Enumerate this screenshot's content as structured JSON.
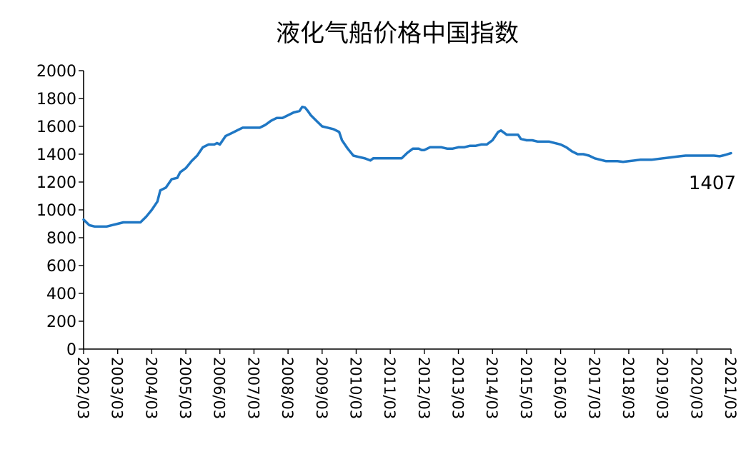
{
  "chart_data": {
    "type": "line",
    "title": "液化气船价格中国指数",
    "xlabel": "",
    "ylabel": "",
    "ylim": [
      0,
      2000
    ],
    "yticks": [
      0,
      200,
      400,
      600,
      800,
      1000,
      1200,
      1400,
      1600,
      1800,
      2000
    ],
    "xticks": [
      "2002/03",
      "2003/03",
      "2004/03",
      "2005/03",
      "2006/03",
      "2007/03",
      "2008/03",
      "2009/03",
      "2010/03",
      "2011/03",
      "2012/03",
      "2013/03",
      "2014/03",
      "2015/03",
      "2016/03",
      "2017/03",
      "2018/03",
      "2019/03",
      "2020/03",
      "2021/03"
    ],
    "grid": false,
    "legend": "none",
    "line_color": "#1f77c4",
    "series": [
      {
        "points": [
          [
            "2002/03",
            930
          ],
          [
            "2002/05",
            890
          ],
          [
            "2002/07",
            880
          ],
          [
            "2002/09",
            880
          ],
          [
            "2002/11",
            880
          ],
          [
            "2003/01",
            890
          ],
          [
            "2003/03",
            900
          ],
          [
            "2003/05",
            910
          ],
          [
            "2003/07",
            910
          ],
          [
            "2003/09",
            910
          ],
          [
            "2003/11",
            910
          ],
          [
            "2004/01",
            950
          ],
          [
            "2004/03",
            1000
          ],
          [
            "2004/05",
            1060
          ],
          [
            "2004/06",
            1140
          ],
          [
            "2004/08",
            1160
          ],
          [
            "2004/10",
            1220
          ],
          [
            "2004/12",
            1230
          ],
          [
            "2005/01",
            1270
          ],
          [
            "2005/03",
            1300
          ],
          [
            "2005/05",
            1350
          ],
          [
            "2005/07",
            1390
          ],
          [
            "2005/09",
            1450
          ],
          [
            "2005/11",
            1470
          ],
          [
            "2006/01",
            1470
          ],
          [
            "2006/02",
            1480
          ],
          [
            "2006/03",
            1470
          ],
          [
            "2006/05",
            1530
          ],
          [
            "2006/07",
            1550
          ],
          [
            "2006/09",
            1570
          ],
          [
            "2006/11",
            1590
          ],
          [
            "2007/01",
            1590
          ],
          [
            "2007/03",
            1590
          ],
          [
            "2007/05",
            1590
          ],
          [
            "2007/07",
            1610
          ],
          [
            "2007/09",
            1640
          ],
          [
            "2007/11",
            1660
          ],
          [
            "2008/01",
            1660
          ],
          [
            "2008/03",
            1680
          ],
          [
            "2008/05",
            1700
          ],
          [
            "2008/07",
            1710
          ],
          [
            "2008/08",
            1740
          ],
          [
            "2008/09",
            1735
          ],
          [
            "2008/10",
            1710
          ],
          [
            "2008/11",
            1680
          ],
          [
            "2009/01",
            1640
          ],
          [
            "2009/03",
            1600
          ],
          [
            "2009/05",
            1590
          ],
          [
            "2009/07",
            1580
          ],
          [
            "2009/09",
            1560
          ],
          [
            "2009/10",
            1500
          ],
          [
            "2009/12",
            1440
          ],
          [
            "2010/02",
            1390
          ],
          [
            "2010/04",
            1380
          ],
          [
            "2010/06",
            1370
          ],
          [
            "2010/08",
            1355
          ],
          [
            "2010/09",
            1370
          ],
          [
            "2010/11",
            1370
          ],
          [
            "2011/01",
            1370
          ],
          [
            "2011/03",
            1370
          ],
          [
            "2011/05",
            1370
          ],
          [
            "2011/07",
            1370
          ],
          [
            "2011/09",
            1410
          ],
          [
            "2011/11",
            1440
          ],
          [
            "2012/01",
            1440
          ],
          [
            "2012/02",
            1430
          ],
          [
            "2012/03",
            1430
          ],
          [
            "2012/05",
            1450
          ],
          [
            "2012/07",
            1450
          ],
          [
            "2012/09",
            1450
          ],
          [
            "2012/11",
            1440
          ],
          [
            "2013/01",
            1440
          ],
          [
            "2013/03",
            1450
          ],
          [
            "2013/05",
            1450
          ],
          [
            "2013/07",
            1460
          ],
          [
            "2013/09",
            1460
          ],
          [
            "2013/11",
            1470
          ],
          [
            "2014/01",
            1470
          ],
          [
            "2014/03",
            1500
          ],
          [
            "2014/05",
            1560
          ],
          [
            "2014/06",
            1570
          ],
          [
            "2014/08",
            1540
          ],
          [
            "2014/10",
            1540
          ],
          [
            "2014/12",
            1540
          ],
          [
            "2015/01",
            1510
          ],
          [
            "2015/03",
            1500
          ],
          [
            "2015/05",
            1500
          ],
          [
            "2015/07",
            1490
          ],
          [
            "2015/09",
            1490
          ],
          [
            "2015/11",
            1490
          ],
          [
            "2016/01",
            1480
          ],
          [
            "2016/03",
            1470
          ],
          [
            "2016/05",
            1450
          ],
          [
            "2016/07",
            1420
          ],
          [
            "2016/09",
            1400
          ],
          [
            "2016/11",
            1400
          ],
          [
            "2017/01",
            1390
          ],
          [
            "2017/03",
            1370
          ],
          [
            "2017/05",
            1360
          ],
          [
            "2017/07",
            1350
          ],
          [
            "2017/09",
            1350
          ],
          [
            "2017/11",
            1350
          ],
          [
            "2018/01",
            1345
          ],
          [
            "2018/03",
            1350
          ],
          [
            "2018/05",
            1355
          ],
          [
            "2018/07",
            1360
          ],
          [
            "2018/09",
            1360
          ],
          [
            "2018/11",
            1360
          ],
          [
            "2019/01",
            1365
          ],
          [
            "2019/03",
            1370
          ],
          [
            "2019/05",
            1375
          ],
          [
            "2019/07",
            1380
          ],
          [
            "2019/09",
            1385
          ],
          [
            "2019/11",
            1390
          ],
          [
            "2020/01",
            1390
          ],
          [
            "2020/03",
            1390
          ],
          [
            "2020/05",
            1390
          ],
          [
            "2020/07",
            1390
          ],
          [
            "2020/09",
            1390
          ],
          [
            "2020/11",
            1385
          ],
          [
            "2021/01",
            1395
          ],
          [
            "2021/03",
            1407
          ]
        ]
      }
    ],
    "annotations": [
      {
        "text": "1407"
      }
    ]
  }
}
